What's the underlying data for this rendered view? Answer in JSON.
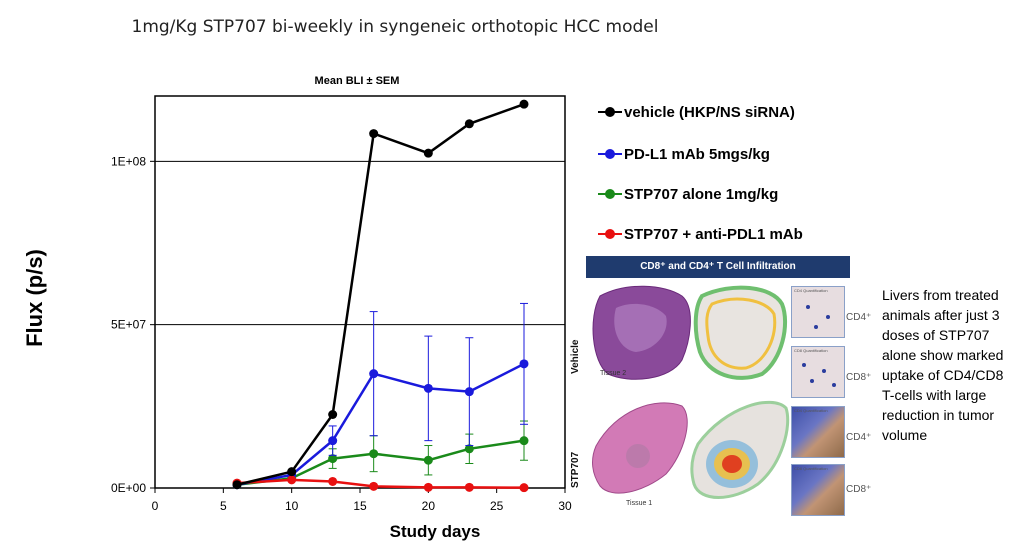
{
  "slide_title": "1mg/Kg STP707 bi-weekly in syngeneic orthotopic HCC model",
  "chart_data": {
    "type": "line",
    "title": "Mean BLI ± SEM",
    "xlabel": "Study days",
    "ylabel": "Flux (p/s)",
    "xlim": [
      0,
      30
    ],
    "ylim": [
      0,
      120000000
    ],
    "x_ticks": [
      0,
      5,
      10,
      15,
      20,
      25,
      30
    ],
    "x_tick_labels": [
      "0",
      "5",
      "10",
      "15",
      "20",
      "25",
      "30"
    ],
    "y_ticks": [
      0,
      50000000,
      100000000
    ],
    "y_tick_labels": [
      "0E+00",
      "5E+07",
      "1E+08"
    ],
    "grid": "horizontal",
    "legend": "right",
    "series": [
      {
        "name": "vehicle (HKP/NS siRNA)",
        "color": "#000000",
        "x": [
          6,
          10,
          13,
          16,
          20,
          23,
          27
        ],
        "y": [
          1000000,
          5000000,
          22500000,
          108500000,
          102500000,
          111500000,
          117500000
        ],
        "err": [
          0,
          0,
          0,
          0,
          0,
          0,
          0
        ]
      },
      {
        "name": "PD-L1 mAb 5mgs/kg",
        "color": "#1a1adc",
        "x": [
          6,
          10,
          13,
          16,
          20,
          23,
          27
        ],
        "y": [
          1000000,
          4000000,
          14500000,
          35000000,
          30500000,
          29500000,
          38000000
        ],
        "err": [
          0,
          0,
          4500000,
          19000000,
          16000000,
          16500000,
          18500000
        ]
      },
      {
        "name": "STP707 alone 1mg/kg",
        "color": "#1a8a1a",
        "x": [
          6,
          10,
          13,
          16,
          20,
          23,
          27
        ],
        "y": [
          1000000,
          3000000,
          9000000,
          10500000,
          8500000,
          12000000,
          14500000
        ],
        "err": [
          0,
          0,
          3000000,
          5500000,
          4500000,
          4500000,
          6000000
        ]
      },
      {
        "name": "STP707 + anti-PDL1 mAb",
        "color": "#e81010",
        "x": [
          6,
          10,
          13,
          16,
          20,
          23,
          27
        ],
        "y": [
          1500000,
          2500000,
          2000000,
          500000,
          200000,
          200000,
          100000
        ],
        "err": [
          0,
          0,
          0,
          0,
          0,
          0,
          0
        ]
      }
    ]
  },
  "panel": {
    "header": "CD8⁺ and CD4⁺ T Cell Infiltration",
    "row_labels": [
      "Vehicle",
      "STP707"
    ],
    "tissue_labels": [
      "Tissue 2",
      "Tissue 1"
    ],
    "cd_labels": [
      "CD4⁺",
      "CD8⁺",
      "CD4⁺",
      "CD8⁺"
    ],
    "thumb_captions": [
      "CD4 Quantification",
      "CD8 Quantification",
      "CD4 Quantification",
      "CD8 Quantification"
    ]
  },
  "note": "Livers from treated animals after just 3 doses of STP707 alone show marked uptake of CD4/CD8 T-cells with large reduction in tumor volume"
}
